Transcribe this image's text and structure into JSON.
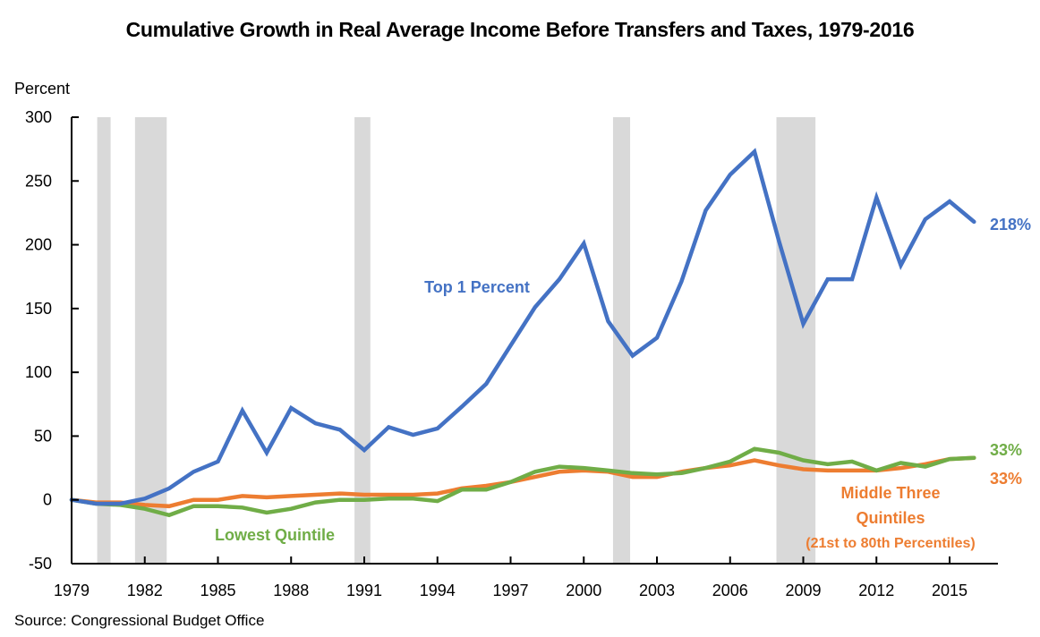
{
  "chart_data": {
    "type": "line",
    "title": "Cumulative Growth in Real Average Income Before Transfers and Taxes, 1979-2016",
    "xlabel": "",
    "ylabel": "Percent",
    "source": "Source: Congressional Budget Office",
    "ylim": [
      -50,
      300
    ],
    "yticks": [
      -50,
      0,
      50,
      100,
      150,
      200,
      250,
      300
    ],
    "xlim": [
      1979,
      2017
    ],
    "xticks": [
      1979,
      1982,
      1985,
      1988,
      1991,
      1994,
      1997,
      2000,
      2003,
      2006,
      2009,
      2012,
      2015
    ],
    "grid": false,
    "legend": "none (direct labels)",
    "x": [
      1979,
      1980,
      1981,
      1982,
      1983,
      1984,
      1985,
      1986,
      1987,
      1988,
      1989,
      1990,
      1991,
      1992,
      1993,
      1994,
      1995,
      1996,
      1997,
      1998,
      1999,
      2000,
      2001,
      2002,
      2003,
      2004,
      2005,
      2006,
      2007,
      2008,
      2009,
      2010,
      2011,
      2012,
      2013,
      2014,
      2015,
      2016
    ],
    "series": [
      {
        "name": "Top 1 Percent",
        "color": "#4472C4",
        "end_label": "218%",
        "values": [
          0,
          -3,
          -3,
          1,
          9,
          22,
          30,
          70,
          37,
          72,
          60,
          55,
          39,
          57,
          51,
          56,
          73,
          91,
          121,
          151,
          173,
          201,
          140,
          113,
          127,
          171,
          227,
          255,
          273,
          203,
          138,
          173,
          173,
          237,
          184,
          220,
          234,
          218
        ]
      },
      {
        "name": "Lowest Quintile",
        "color": "#70AD47",
        "end_label": "33%",
        "values": [
          0,
          -3,
          -4,
          -7,
          -12,
          -5,
          -5,
          -6,
          -10,
          -7,
          -2,
          0,
          0,
          1,
          1,
          -1,
          8,
          8,
          14,
          22,
          26,
          25,
          23,
          21,
          20,
          21,
          25,
          30,
          40,
          37,
          31,
          28,
          30,
          23,
          29,
          26,
          32,
          33
        ]
      },
      {
        "name": "Middle Three Quintiles (21st to 80th Percentiles)",
        "color": "#ED7D31",
        "end_label": "33%",
        "values": [
          0,
          -2,
          -2,
          -4,
          -5,
          0,
          0,
          3,
          2,
          3,
          4,
          5,
          4,
          4,
          4,
          5,
          9,
          11,
          14,
          18,
          22,
          23,
          22,
          18,
          18,
          22,
          25,
          27,
          31,
          27,
          24,
          23,
          23,
          23,
          25,
          28,
          32,
          33
        ]
      }
    ],
    "annotations": {
      "top1": "Top 1 Percent",
      "lowest": "Lowest Quintile",
      "middle_line1": "Middle Three",
      "middle_line2": "Quintiles",
      "middle_line3": "(21st to 80th Percentiles)"
    },
    "recessions": [
      {
        "start": 1980.05,
        "end": 1980.6
      },
      {
        "start": 1981.6,
        "end": 1982.9
      },
      {
        "start": 1990.6,
        "end": 1991.25
      },
      {
        "start": 2001.2,
        "end": 2001.9
      },
      {
        "start": 2007.9,
        "end": 2009.5
      }
    ],
    "recession_color": "#D9D9D9"
  }
}
